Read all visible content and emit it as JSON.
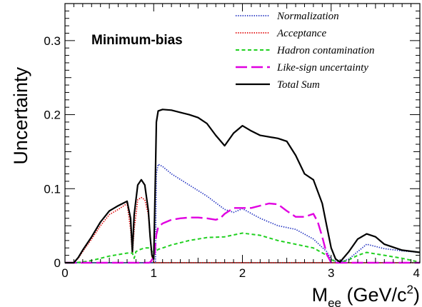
{
  "chart_data": {
    "type": "line",
    "title": "",
    "xlabel": "M",
    "xlabel_sub": "ee",
    "xlabel_unit_open": " (GeV/c",
    "xlabel_unit_sup": "2",
    "xlabel_unit_close": ")",
    "ylabel": "Uncertainty",
    "annotation": "Minimum-bias",
    "xlim": [
      0,
      4
    ],
    "ylim": [
      0,
      0.35
    ],
    "xticks": [
      0,
      1,
      2,
      3,
      4
    ],
    "xtick_labels": [
      "0",
      "1",
      "2",
      "3",
      "4"
    ],
    "yticks": [
      0,
      0.1,
      0.2,
      0.3
    ],
    "ytick_labels": [
      "0",
      "0.1",
      "0.2",
      "0.3"
    ],
    "grid": false,
    "legend_position": "top-right",
    "series": [
      {
        "name": "Normalization",
        "color": "#2030c0",
        "dash": "dotted",
        "x": [
          0.0,
          0.1,
          0.3,
          0.5,
          0.7,
          0.76,
          0.78,
          0.82,
          0.86,
          0.9,
          0.95,
          0.98,
          1.0,
          1.02,
          1.03,
          1.05,
          1.1,
          1.2,
          1.4,
          1.6,
          1.8,
          1.9,
          2.0,
          2.2,
          2.4,
          2.6,
          2.8,
          2.95,
          3.0,
          3.05,
          3.1,
          3.2,
          3.3,
          3.4,
          3.5,
          3.6,
          3.8,
          4.0
        ],
        "y": [
          0.0,
          0.0,
          0.0,
          0.0,
          0.0,
          0.0,
          0.0,
          0.0,
          0.0,
          0.0,
          0.0,
          0.0,
          0.0,
          0.0,
          0.12,
          0.133,
          0.13,
          0.12,
          0.105,
          0.09,
          0.072,
          0.068,
          0.073,
          0.06,
          0.05,
          0.045,
          0.032,
          0.015,
          0.005,
          0.002,
          0.001,
          0.005,
          0.015,
          0.025,
          0.022,
          0.019,
          0.016,
          0.014
        ]
      },
      {
        "name": "Acceptance",
        "color": "#e00000",
        "dash": "dotted",
        "x": [
          0.0,
          0.1,
          0.15,
          0.2,
          0.3,
          0.4,
          0.5,
          0.6,
          0.7,
          0.74,
          0.76,
          0.78,
          0.82,
          0.86,
          0.9,
          0.94,
          0.96,
          0.98,
          1.0,
          1.1,
          1.5,
          2.0,
          2.5,
          3.0,
          3.5,
          4.0
        ],
        "y": [
          0.0,
          0.0,
          0.006,
          0.015,
          0.032,
          0.05,
          0.065,
          0.072,
          0.08,
          0.045,
          0.012,
          0.045,
          0.085,
          0.088,
          0.085,
          0.065,
          0.035,
          0.008,
          0.0,
          0.0,
          0.0,
          0.0,
          0.0,
          0.0,
          0.0,
          0.0
        ]
      },
      {
        "name": "Hadron contamination",
        "color": "#20d020",
        "dash": "dashed",
        "x": [
          0.0,
          0.1,
          0.2,
          0.3,
          0.4,
          0.5,
          0.6,
          0.7,
          0.76,
          0.78,
          0.8,
          0.85,
          0.9,
          0.96,
          1.0,
          1.02,
          1.03,
          1.05,
          1.1,
          1.2,
          1.4,
          1.6,
          1.8,
          2.0,
          2.2,
          2.4,
          2.6,
          2.8,
          2.95,
          3.0,
          3.1,
          3.2,
          3.3,
          3.4,
          3.5,
          3.6,
          3.8,
          3.95,
          4.0
        ],
        "y": [
          0.0,
          0.0,
          0.001,
          0.003,
          0.006,
          0.009,
          0.011,
          0.013,
          0.013,
          0.006,
          0.015,
          0.018,
          0.02,
          0.02,
          0.01,
          0.02,
          0.016,
          0.018,
          0.02,
          0.024,
          0.03,
          0.034,
          0.035,
          0.04,
          0.037,
          0.03,
          0.025,
          0.02,
          0.01,
          0.004,
          0.0,
          0.004,
          0.01,
          0.014,
          0.012,
          0.01,
          0.006,
          0.002,
          0.001
        ]
      },
      {
        "name": "Like-sign uncertainty",
        "color": "#e000e0",
        "dash": "longdash",
        "x": [
          0.0,
          0.5,
          0.95,
          0.97,
          0.99,
          1.01,
          1.02,
          1.03,
          1.05,
          1.1,
          1.2,
          1.3,
          1.4,
          1.5,
          1.6,
          1.7,
          1.75,
          1.8,
          1.9,
          2.0,
          2.1,
          2.2,
          2.3,
          2.4,
          2.5,
          2.6,
          2.7,
          2.8,
          2.85,
          2.9,
          2.95,
          3.0,
          3.5,
          4.0
        ],
        "y": [
          0.0,
          0.0,
          0.0,
          0.002,
          0.006,
          0.01,
          0.025,
          0.038,
          0.048,
          0.053,
          0.058,
          0.06,
          0.061,
          0.061,
          0.06,
          0.058,
          0.06,
          0.066,
          0.074,
          0.074,
          0.074,
          0.077,
          0.08,
          0.079,
          0.07,
          0.062,
          0.062,
          0.066,
          0.055,
          0.035,
          0.012,
          0.0,
          0.0,
          0.0
        ]
      },
      {
        "name": "Total Sum",
        "color": "#000000",
        "dash": "solid",
        "x": [
          0.0,
          0.1,
          0.15,
          0.2,
          0.3,
          0.4,
          0.5,
          0.6,
          0.7,
          0.74,
          0.76,
          0.78,
          0.82,
          0.86,
          0.9,
          0.94,
          0.96,
          0.98,
          1.0,
          1.02,
          1.03,
          1.05,
          1.1,
          1.2,
          1.4,
          1.5,
          1.6,
          1.7,
          1.8,
          1.9,
          2.0,
          2.1,
          2.2,
          2.4,
          2.5,
          2.6,
          2.7,
          2.8,
          2.9,
          2.95,
          3.0,
          3.05,
          3.1,
          3.2,
          3.3,
          3.4,
          3.5,
          3.6,
          3.8,
          4.0
        ],
        "y": [
          0.0,
          0.0,
          0.007,
          0.017,
          0.035,
          0.055,
          0.07,
          0.077,
          0.083,
          0.06,
          0.015,
          0.065,
          0.105,
          0.112,
          0.105,
          0.07,
          0.035,
          0.01,
          0.005,
          0.12,
          0.19,
          0.205,
          0.207,
          0.206,
          0.2,
          0.196,
          0.188,
          0.172,
          0.158,
          0.175,
          0.185,
          0.178,
          0.172,
          0.168,
          0.164,
          0.145,
          0.12,
          0.112,
          0.08,
          0.05,
          0.02,
          0.005,
          0.001,
          0.015,
          0.032,
          0.039,
          0.035,
          0.025,
          0.017,
          0.014
        ]
      }
    ]
  }
}
